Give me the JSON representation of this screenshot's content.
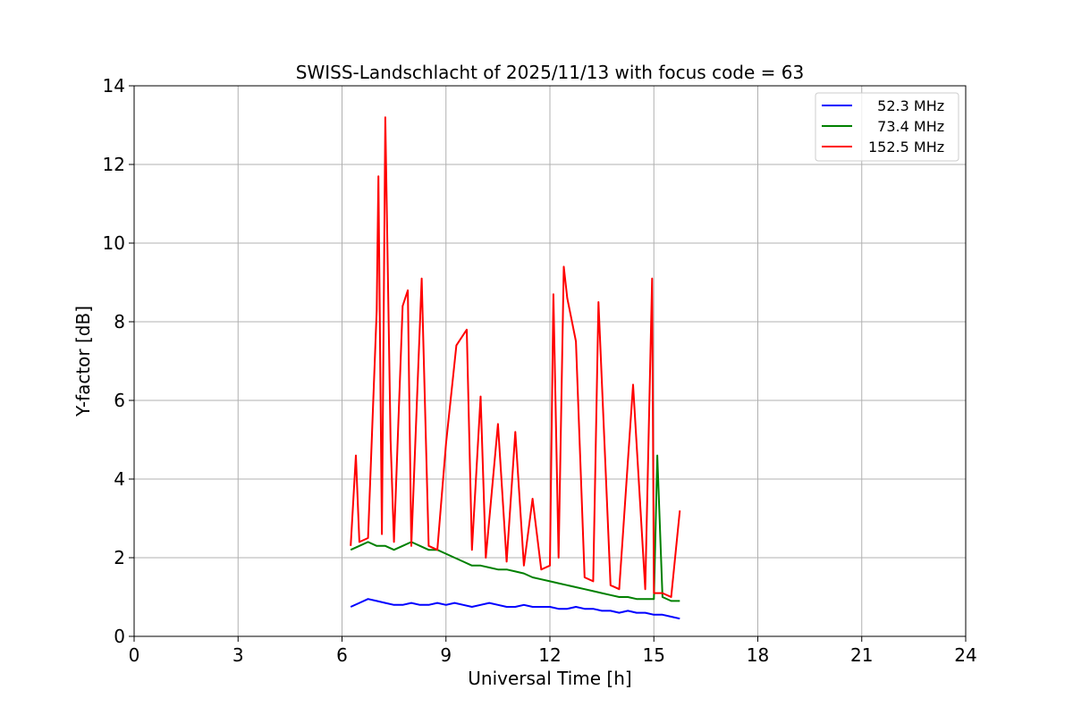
{
  "chart_data": {
    "type": "line",
    "title": "SWISS-Landschlacht of 2025/11/13 with focus code = 63",
    "xlabel": "Universal Time [h]",
    "ylabel": "Y-factor [dB]",
    "xlim": [
      0,
      24
    ],
    "ylim": [
      0,
      14
    ],
    "xticks": [
      0,
      3,
      6,
      9,
      12,
      15,
      18,
      21,
      24
    ],
    "yticks": [
      0,
      2,
      4,
      6,
      8,
      10,
      12,
      14
    ],
    "grid": true,
    "legend_position": "top-right",
    "series": [
      {
        "name": "  52.3 MHz",
        "color": "#0000ff",
        "x": [
          6.25,
          6.5,
          6.75,
          7.0,
          7.25,
          7.5,
          7.75,
          8.0,
          8.25,
          8.5,
          8.75,
          9.0,
          9.25,
          9.5,
          9.75,
          10.0,
          10.25,
          10.5,
          10.75,
          11.0,
          11.25,
          11.5,
          11.75,
          12.0,
          12.25,
          12.5,
          12.75,
          13.0,
          13.25,
          13.5,
          13.75,
          14.0,
          14.25,
          14.5,
          14.75,
          15.0,
          15.25,
          15.5,
          15.75
        ],
        "y": [
          0.75,
          0.85,
          0.95,
          0.9,
          0.85,
          0.8,
          0.8,
          0.85,
          0.8,
          0.8,
          0.85,
          0.8,
          0.85,
          0.8,
          0.75,
          0.8,
          0.85,
          0.8,
          0.75,
          0.75,
          0.8,
          0.75,
          0.75,
          0.75,
          0.7,
          0.7,
          0.75,
          0.7,
          0.7,
          0.65,
          0.65,
          0.6,
          0.65,
          0.6,
          0.6,
          0.55,
          0.55,
          0.5,
          0.45
        ]
      },
      {
        "name": "  73.4 MHz",
        "color": "#008000",
        "x": [
          6.25,
          6.5,
          6.75,
          7.0,
          7.25,
          7.5,
          7.75,
          8.0,
          8.25,
          8.5,
          8.75,
          9.0,
          9.25,
          9.5,
          9.75,
          10.0,
          10.25,
          10.5,
          10.75,
          11.0,
          11.25,
          11.5,
          11.75,
          12.0,
          12.25,
          12.5,
          12.75,
          13.0,
          13.25,
          13.5,
          13.75,
          14.0,
          14.25,
          14.5,
          14.75,
          15.0,
          15.1,
          15.25,
          15.5,
          15.75
        ],
        "y": [
          2.2,
          2.3,
          2.4,
          2.3,
          2.3,
          2.2,
          2.3,
          2.4,
          2.3,
          2.2,
          2.2,
          2.1,
          2.0,
          1.9,
          1.8,
          1.8,
          1.75,
          1.7,
          1.7,
          1.65,
          1.6,
          1.5,
          1.45,
          1.4,
          1.35,
          1.3,
          1.25,
          1.2,
          1.15,
          1.1,
          1.05,
          1.0,
          1.0,
          0.95,
          0.95,
          0.95,
          4.6,
          1.0,
          0.9,
          0.9
        ]
      },
      {
        "name": "152.5 MHz",
        "color": "#ff0000",
        "x": [
          6.25,
          6.4,
          6.5,
          6.75,
          7.0,
          7.05,
          7.15,
          7.25,
          7.4,
          7.5,
          7.75,
          7.9,
          8.0,
          8.3,
          8.5,
          8.75,
          9.0,
          9.3,
          9.6,
          9.75,
          10.0,
          10.15,
          10.5,
          10.75,
          11.0,
          11.25,
          11.5,
          11.75,
          12.0,
          12.1,
          12.25,
          12.4,
          12.5,
          12.75,
          13.0,
          13.25,
          13.4,
          13.75,
          14.0,
          14.4,
          14.75,
          14.95,
          15.0,
          15.25,
          15.5,
          15.75
        ],
        "y": [
          2.3,
          4.6,
          2.4,
          2.5,
          8.3,
          11.7,
          2.6,
          13.2,
          5.0,
          2.4,
          8.4,
          8.8,
          2.3,
          9.1,
          2.3,
          2.2,
          4.9,
          7.4,
          7.8,
          2.2,
          6.1,
          2.0,
          5.4,
          1.9,
          5.2,
          1.8,
          3.5,
          1.7,
          1.8,
          8.7,
          2.0,
          9.4,
          8.6,
          7.5,
          1.5,
          1.4,
          8.5,
          1.3,
          1.2,
          6.4,
          1.2,
          9.1,
          1.1,
          1.1,
          1.0,
          3.2
        ]
      }
    ]
  }
}
